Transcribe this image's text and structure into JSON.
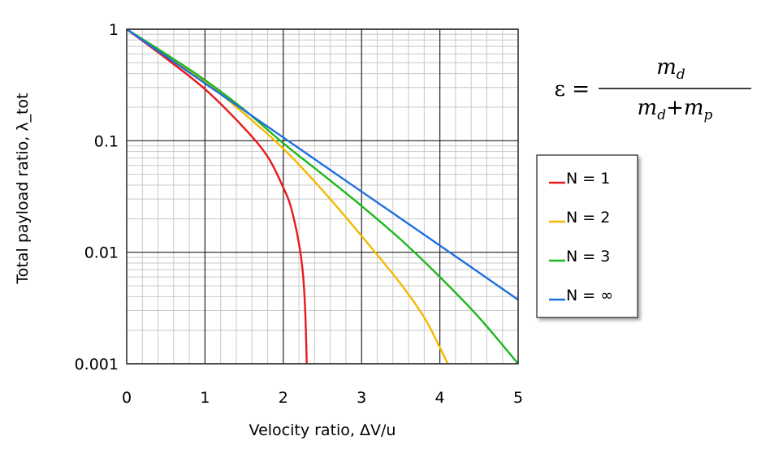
{
  "chart_data": {
    "type": "line",
    "title": "",
    "xlabel": "Velocity ratio, ΔV/u",
    "ylabel": "Total payload ratio, λ_tot",
    "xlim": [
      0,
      5
    ],
    "ylim": [
      0.001,
      1
    ],
    "y_scale": "log",
    "grid": true,
    "x_ticks": [
      "0",
      "1",
      "2",
      "3",
      "4",
      "5"
    ],
    "y_ticks": [
      {
        "value": 1,
        "label": "1"
      },
      {
        "value": 0.1,
        "label": "0.1"
      },
      {
        "value": 0.01,
        "label": "0.01"
      },
      {
        "value": 0.001,
        "label": "0.001"
      }
    ],
    "legend_position": "right",
    "series": [
      {
        "name": "N = 1",
        "color": "#e8191c",
        "x": [
          0,
          0.5,
          1.0,
          1.5,
          1.8,
          2.0,
          2.1,
          2.2,
          2.25,
          2.28,
          2.3
        ],
        "y": [
          1,
          0.55,
          0.29,
          0.13,
          0.072,
          0.038,
          0.025,
          0.012,
          0.0065,
          0.003,
          0.001
        ]
      },
      {
        "name": "N = 2",
        "color": "#f5b800",
        "x": [
          0,
          0.5,
          1.0,
          1.5,
          2.0,
          2.5,
          3.0,
          3.5,
          3.8,
          4.0,
          4.1
        ],
        "y": [
          1,
          0.59,
          0.34,
          0.175,
          0.085,
          0.036,
          0.014,
          0.0052,
          0.0026,
          0.0014,
          0.001
        ]
      },
      {
        "name": "N = 3",
        "color": "#1db81d",
        "x": [
          0,
          0.5,
          1.0,
          1.5,
          2.0,
          2.5,
          3.0,
          3.5,
          4.0,
          4.5,
          5.0
        ],
        "y": [
          1,
          0.6,
          0.35,
          0.19,
          0.095,
          0.05,
          0.026,
          0.013,
          0.006,
          0.0026,
          0.001
        ]
      },
      {
        "name": "N = ∞",
        "color": "#1f6fe0",
        "x": [
          0,
          1,
          2,
          3,
          4,
          5
        ],
        "y": [
          1,
          0.327,
          0.107,
          0.035,
          0.0115,
          0.00375
        ]
      }
    ],
    "annotations": [
      {
        "type": "formula",
        "lhs": "ε =",
        "numerator": "m",
        "numerator_sub": "d",
        "den_term1": "m",
        "den_sub1": "d",
        "den_plus": "+",
        "den_term2": "m",
        "den_sub2": "p"
      }
    ]
  },
  "colors": {
    "grid_major": "#222222",
    "grid_minor": "#c8c8c8",
    "legend_border": "#222222"
  }
}
